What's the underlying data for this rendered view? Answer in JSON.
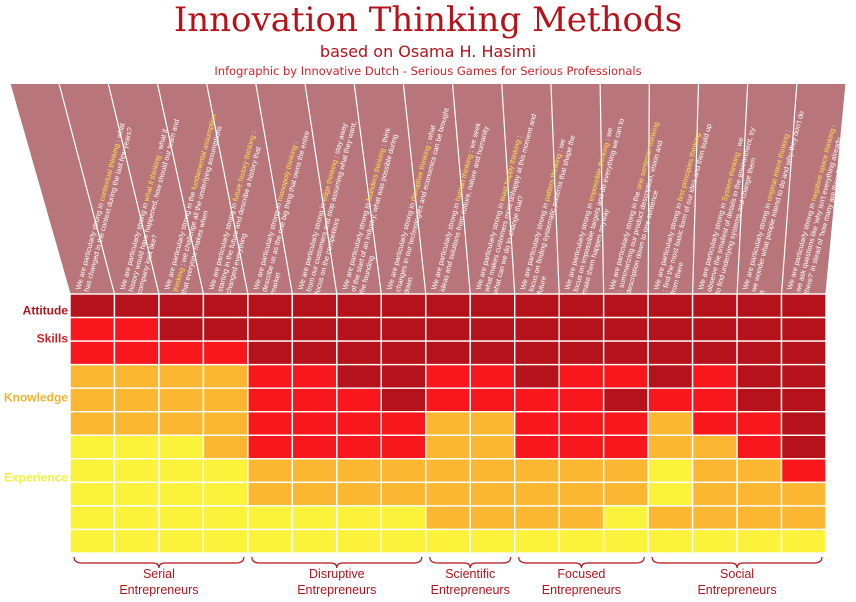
{
  "header": {
    "title": "Innovation Thinking Methods",
    "subtitle": "based on Osama H. Hasimi",
    "credit": "Infographic by Innovative Dutch - Serious Games for Serious Professionals"
  },
  "colors": {
    "level_3": "#b5121b",
    "level_2": "#f7171d",
    "level_1": "#fbb731",
    "level_0": "#fbf23c",
    "header_band": "#b8757a",
    "row_attitude": "#b5121b",
    "row_skills": "#d42026",
    "row_knowledge": "#f4b032",
    "row_experience": "#f5ef3f"
  },
  "chart_data": {
    "type": "heatmap",
    "title": "Innovation Thinking Methods",
    "levels": [
      "Experience",
      "Knowledge",
      "Skills",
      "Attitude"
    ],
    "row_labels": [
      "Attitude",
      "Skills",
      "Knowledge",
      "Experience"
    ],
    "columns": [
      {
        "lead": "We are particularly strong in ",
        "highlight": "contextual thinking",
        "rest": ": what has changed in the context during the last few years?"
      },
      {
        "lead": "We are particularly strong in ",
        "highlight": "what if thinking",
        "rest": ": what if history would have happened, how should our team and company look like?"
      },
      {
        "lead": "We are particularly strong in the ",
        "highlight": "fundamental assumption thinking",
        "rest": ": we challenge all the underlying assumptions that everyone makes when"
      },
      {
        "lead": "We are particularly strong in ",
        "highlight": "future history thinking",
        "rest": ": starting in the future and describe a history that changed everything"
      },
      {
        "lead": "We are particularly strong in ",
        "highlight": "monopoly thinking",
        "rest": ": describe us as the one big thing that owns the entire market"
      },
      {
        "lead": "We are particularly strong in ",
        "highlight": "edge thinking",
        "rest": ": stay away from our customers and stop assuming what they want, focus on the competitors"
      },
      {
        "lead": "We are particularly strong in ",
        "highlight": "founders thinking",
        "rest": ": think of the start of an industry, what was possible during the founding"
      },
      {
        "lead": "We are particularly strong in ",
        "highlight": "disruptive thinking",
        "rest": ": what changes in our technologies and economics can be brought down"
      },
      {
        "lead": "We are particularly strong in ",
        "highlight": "human thinking",
        "rest": ": we seek ideas and solutions from culture, nature and humanity"
      },
      {
        "lead": "We are particularly strong in ",
        "highlight": "least happy thinking",
        "rest": ": what makes customers most unhappy at this moment and what can we do to change that?"
      },
      {
        "lead": "We are particularly strong in ",
        "highlight": "pattern thinking",
        "rest": ": we focus on finding systematic patterns that shape the future"
      },
      {
        "lead": "We are particularly strong in ",
        "highlight": "impossible thinking",
        "rest": ": we focus on impossible targets and do everything we can to make them happen anyway"
      },
      {
        "lead": "We are particularly strong in the ",
        "highlight": "one sentence thinking",
        "rest": ": summarizing our product description, vision and description down to one sentence"
      },
      {
        "lead": "We are particularly strong in ",
        "highlight": "first principles thinking",
        "rest": ": find the most basic form of our idea and then build up from there"
      },
      {
        "lead": "We are particularly strong in ",
        "highlight": "System thinking",
        "rest": ": we observe the smallest of details in the environment, try to find underlying systems and change them"
      },
      {
        "lead": "We are particularly strong in ",
        "highlight": "original intent thinking",
        "rest": ": we wonder what people intend to do and why they don't do it"
      },
      {
        "lead": "We are particularly strong in ",
        "highlight": "negative space thinking",
        "rest": ": we ask questions like 'why isn't everything already there?' in stead of 'how many are there?'"
      }
    ],
    "values": [
      [
        3,
        3,
        3,
        3,
        3,
        3,
        3,
        3,
        3,
        3,
        3,
        3,
        3,
        3,
        3,
        3,
        3
      ],
      [
        2,
        2,
        3,
        3,
        3,
        3,
        3,
        3,
        3,
        3,
        3,
        3,
        3,
        3,
        3,
        3,
        3
      ],
      [
        2,
        2,
        2,
        2,
        3,
        3,
        3,
        3,
        3,
        3,
        3,
        3,
        3,
        3,
        3,
        3,
        3
      ],
      [
        1,
        1,
        1,
        1,
        2,
        2,
        3,
        3,
        2,
        2,
        3,
        2,
        2,
        3,
        2,
        3,
        3
      ],
      [
        1,
        1,
        1,
        1,
        2,
        2,
        2,
        3,
        2,
        2,
        2,
        2,
        3,
        2,
        2,
        3,
        3
      ],
      [
        1,
        1,
        1,
        1,
        2,
        2,
        2,
        2,
        1,
        1,
        2,
        2,
        2,
        1,
        2,
        2,
        3
      ],
      [
        0,
        0,
        0,
        1,
        2,
        2,
        2,
        2,
        1,
        1,
        2,
        2,
        2,
        1,
        1,
        2,
        3
      ],
      [
        0,
        0,
        0,
        0,
        1,
        1,
        1,
        1,
        1,
        1,
        1,
        1,
        1,
        0,
        1,
        1,
        2
      ],
      [
        0,
        0,
        0,
        0,
        1,
        1,
        1,
        1,
        1,
        1,
        1,
        1,
        1,
        0,
        1,
        1,
        1
      ],
      [
        0,
        0,
        0,
        0,
        0,
        0,
        0,
        0,
        1,
        1,
        1,
        1,
        0,
        1,
        1,
        1,
        1
      ],
      [
        0,
        0,
        0,
        0,
        0,
        0,
        0,
        0,
        0,
        0,
        0,
        0,
        0,
        0,
        0,
        0,
        0
      ]
    ],
    "groups": [
      {
        "line1": "Serial",
        "line2": "Entrepreneurs",
        "start": 0,
        "end": 3
      },
      {
        "line1": "Disruptive",
        "line2": "Entrepreneurs",
        "start": 4,
        "end": 7
      },
      {
        "line1": "Scientific",
        "line2": "Entrepreneurs",
        "start": 8,
        "end": 9
      },
      {
        "line1": "Focused",
        "line2": "Entrepreneurs",
        "start": 10,
        "end": 12
      },
      {
        "line1": "Social",
        "line2": "Entrepreneurs",
        "start": 13,
        "end": 16
      }
    ]
  }
}
